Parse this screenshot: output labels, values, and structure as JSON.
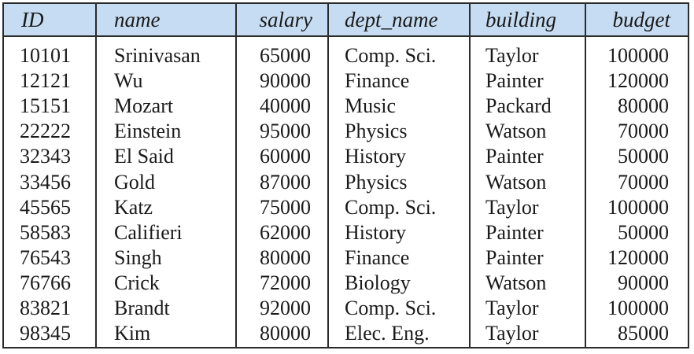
{
  "table": {
    "headers": [
      "ID",
      "name",
      "salary",
      "dept_name",
      "building",
      "budget"
    ],
    "rows": [
      [
        "10101",
        "Srinivasan",
        "65000",
        "Comp. Sci.",
        "Taylor",
        "100000"
      ],
      [
        "12121",
        "Wu",
        "90000",
        "Finance",
        "Painter",
        "120000"
      ],
      [
        "15151",
        "Mozart",
        "40000",
        "Music",
        "Packard",
        "80000"
      ],
      [
        "22222",
        "Einstein",
        "95000",
        "Physics",
        "Watson",
        "70000"
      ],
      [
        "32343",
        "El Said",
        "60000",
        "History",
        "Painter",
        "50000"
      ],
      [
        "33456",
        "Gold",
        "87000",
        "Physics",
        "Watson",
        "70000"
      ],
      [
        "45565",
        "Katz",
        "75000",
        "Comp. Sci.",
        "Taylor",
        "100000"
      ],
      [
        "58583",
        "Califieri",
        "62000",
        "History",
        "Painter",
        "50000"
      ],
      [
        "76543",
        "Singh",
        "80000",
        "Finance",
        "Painter",
        "120000"
      ],
      [
        "76766",
        "Crick",
        "72000",
        "Biology",
        "Watson",
        "90000"
      ],
      [
        "83821",
        "Brandt",
        "92000",
        "Comp. Sci.",
        "Taylor",
        "100000"
      ],
      [
        "98345",
        "Kim",
        "80000",
        "Elec. Eng.",
        "Taylor",
        "85000"
      ]
    ]
  },
  "colors": {
    "header_bg": "#c6dcf2",
    "border": "#2b2b2b"
  }
}
